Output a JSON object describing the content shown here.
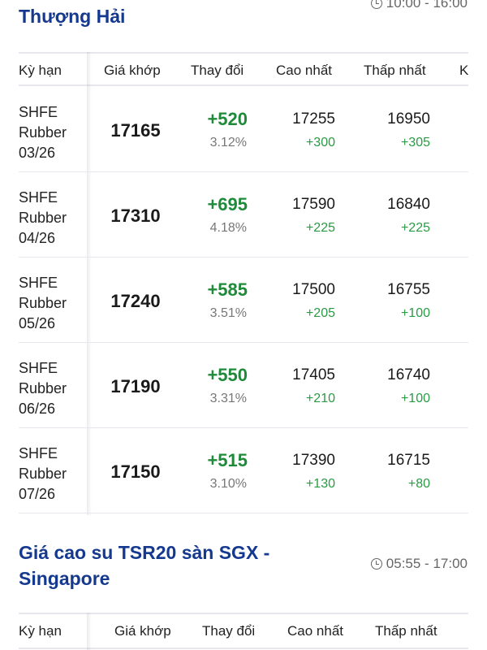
{
  "section1": {
    "title_line2": "Thượng Hải",
    "time": "10:00 - 16:00",
    "headers": [
      "Kỳ hạn",
      "Giá khớp",
      "Thay đổi",
      "Cao nhất",
      "Thấp nhất",
      "K"
    ],
    "rows": [
      {
        "term": [
          "SHFE",
          "Rubber",
          "03/26"
        ],
        "price": "17165",
        "change": "+520",
        "pct": "3.12%",
        "high": "17255",
        "high_chg": "+300",
        "low": "16950",
        "low_chg": "+305"
      },
      {
        "term": [
          "SHFE",
          "Rubber",
          "04/26"
        ],
        "price": "17310",
        "change": "+695",
        "pct": "4.18%",
        "high": "17590",
        "high_chg": "+225",
        "low": "16840",
        "low_chg": "+225"
      },
      {
        "term": [
          "SHFE",
          "Rubber",
          "05/26"
        ],
        "price": "17240",
        "change": "+585",
        "pct": "3.51%",
        "high": "17500",
        "high_chg": "+205",
        "low": "16755",
        "low_chg": "+100"
      },
      {
        "term": [
          "SHFE",
          "Rubber",
          "06/26"
        ],
        "price": "17190",
        "change": "+550",
        "pct": "3.31%",
        "high": "17405",
        "high_chg": "+210",
        "low": "16740",
        "low_chg": "+100"
      },
      {
        "term": [
          "SHFE",
          "Rubber",
          "07/26"
        ],
        "price": "17150",
        "change": "+515",
        "pct": "3.10%",
        "high": "17390",
        "high_chg": "+130",
        "low": "16715",
        "low_chg": "+80"
      }
    ]
  },
  "section2": {
    "title_line1": "Giá cao su TSR20 sàn SGX -",
    "title_line2": "Singapore",
    "time": "05:55 - 17:00",
    "headers": [
      "Kỳ hạn",
      "Giá khớp",
      "Thay đổi",
      "Cao nhất",
      "Thấp nhất"
    ]
  },
  "colors": {
    "title": "#15398f",
    "up": "#1f8a3a"
  },
  "icons": {
    "time": "clock-icon"
  }
}
